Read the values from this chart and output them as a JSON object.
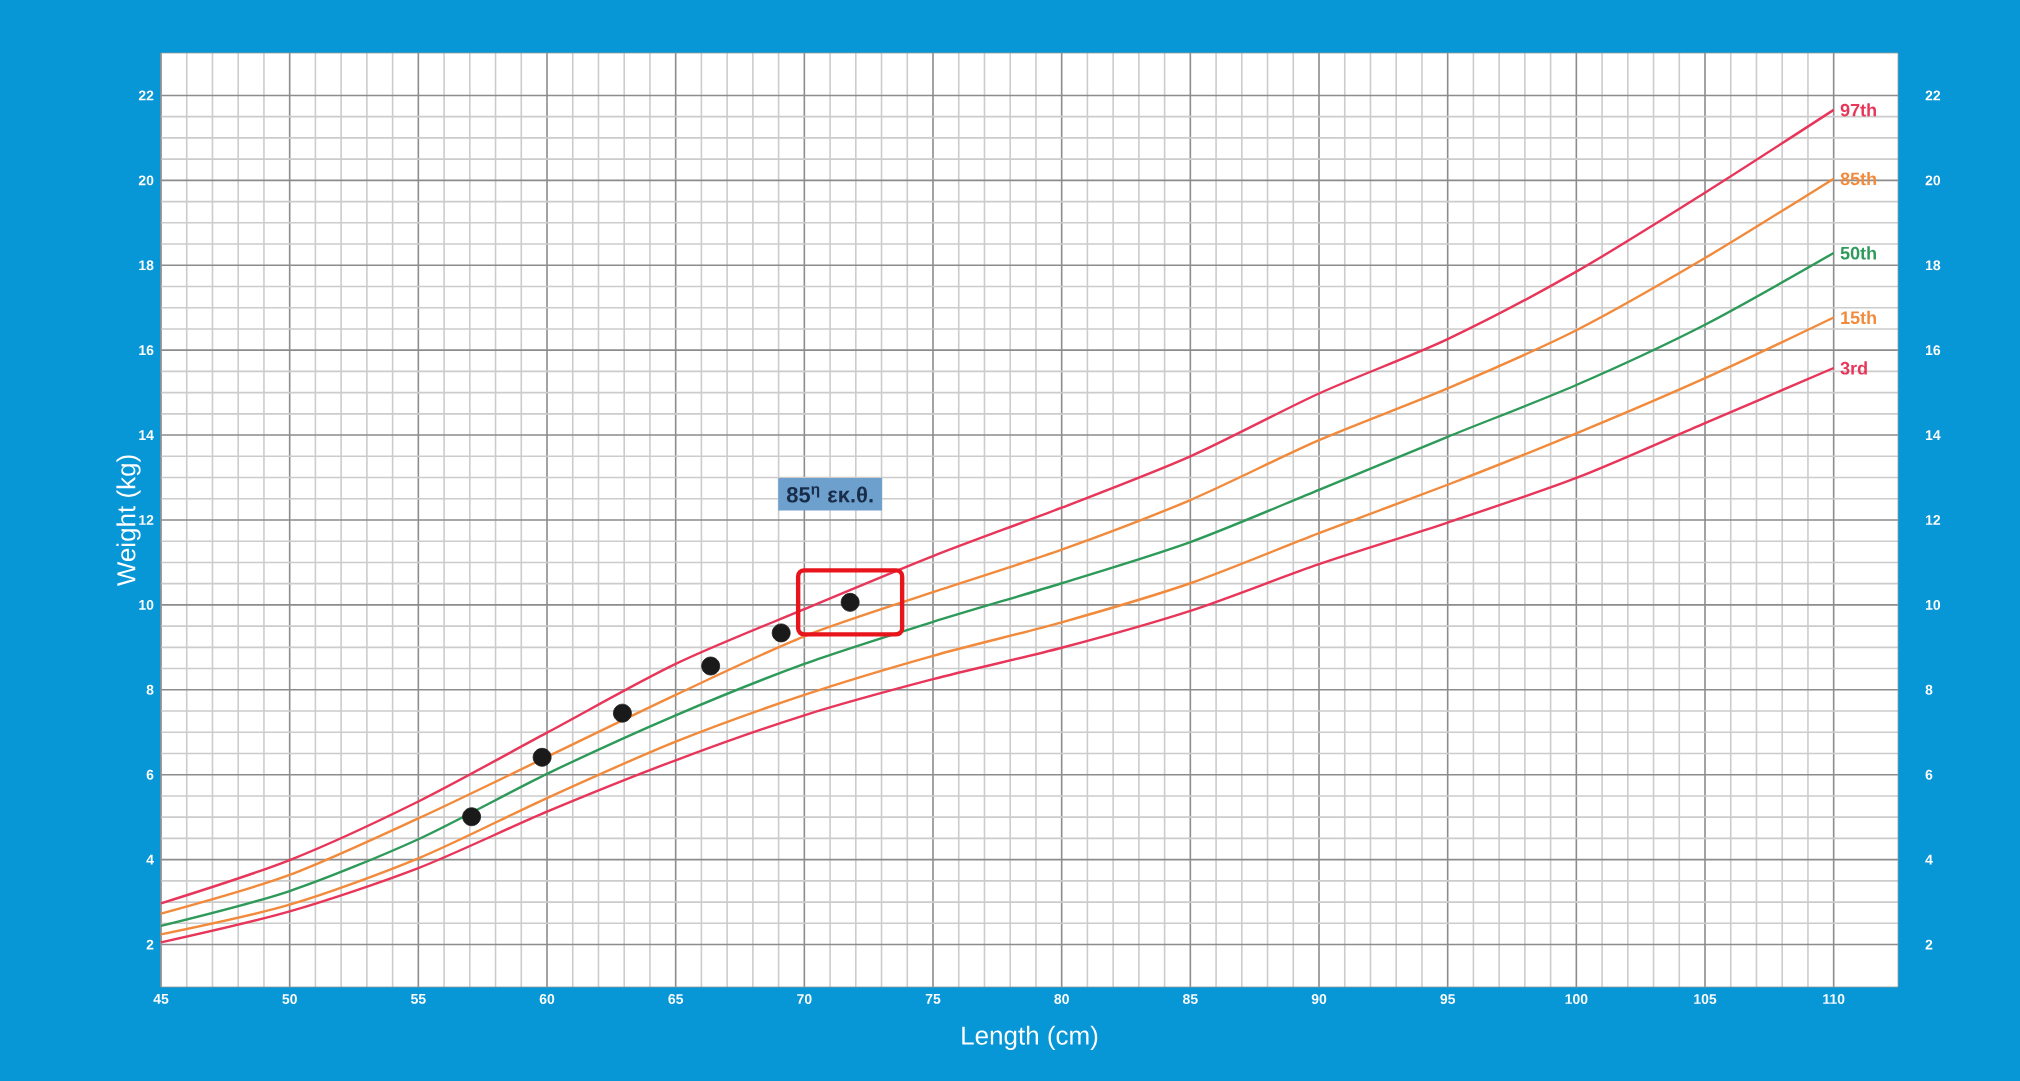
{
  "chart_data": {
    "type": "line",
    "xlabel": "Length (cm)",
    "ylabel": "Weight (kg)",
    "x": [
      45,
      50,
      55,
      60,
      65,
      70,
      75,
      80,
      85,
      90,
      95,
      100,
      105,
      110
    ],
    "series": [
      {
        "name": "97th",
        "color": "#e8365a",
        "values": [
          2.97,
          3.99,
          5.37,
          6.99,
          8.61,
          9.9,
          11.15,
          12.29,
          13.5,
          14.98,
          16.26,
          17.85,
          19.71,
          21.66
        ]
      },
      {
        "name": "85th",
        "color": "#f28a3c",
        "values": [
          2.73,
          3.64,
          4.97,
          6.42,
          7.88,
          9.26,
          10.3,
          11.3,
          12.47,
          13.88,
          15.1,
          16.47,
          18.17,
          20.04
        ]
      },
      {
        "name": "50th",
        "color": "#2e9a5a",
        "values": [
          2.44,
          3.26,
          4.48,
          6.02,
          7.4,
          8.61,
          9.6,
          10.51,
          11.48,
          12.71,
          13.96,
          15.18,
          16.6,
          18.29
        ]
      },
      {
        "name": "15th",
        "color": "#f28a3c",
        "values": [
          2.24,
          2.94,
          4.03,
          5.45,
          6.78,
          7.88,
          8.8,
          9.59,
          10.51,
          11.69,
          12.83,
          14.04,
          15.34,
          16.77
        ]
      },
      {
        "name": "3rd",
        "color": "#e8365a",
        "values": [
          2.05,
          2.78,
          3.8,
          5.13,
          6.34,
          7.4,
          8.25,
          8.99,
          9.86,
          10.96,
          11.94,
          12.99,
          14.28,
          15.58
        ]
      },
      {
        "type": "scatter",
        "marker": "circle",
        "color": "#1a1a1a",
        "x": [
          57.07,
          59.81,
          62.93,
          66.36,
          69.1,
          71.78
        ],
        "values": [
          5.01,
          6.41,
          7.45,
          8.56,
          9.34,
          10.06
        ]
      }
    ],
    "annotations": [
      "85$^{η}$ εκ.θ."
    ],
    "xlim": [
      45,
      112.5
    ],
    "ylim": [
      1,
      23
    ],
    "xticks": [
      45,
      50,
      55,
      60,
      65,
      70,
      75,
      80,
      85,
      90,
      95,
      100,
      105,
      110
    ],
    "yticks": [
      2,
      4,
      6,
      8,
      10,
      12,
      14,
      16,
      18,
      20,
      22
    ],
    "y2lim": [
      1,
      23
    ],
    "y2ticks": [
      2,
      4,
      6,
      8,
      10,
      12,
      14,
      16,
      18,
      20,
      22
    ],
    "grid": true
  }
}
